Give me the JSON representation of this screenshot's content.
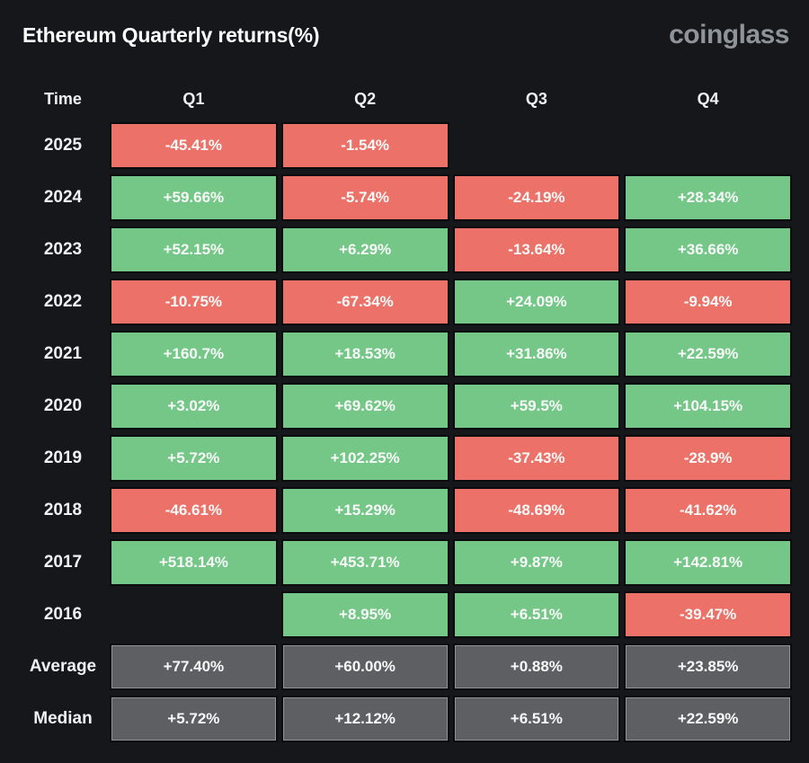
{
  "header": {
    "title": "Ethereum Quarterly returns(%)",
    "logo": "coinglass"
  },
  "colors": {
    "background": "#15171b",
    "border": "#0b0c0e",
    "positive": "#74c787",
    "negative": "#ec7168",
    "neutral": "#5e5f62"
  },
  "table": {
    "columns": [
      "Time",
      "Q1",
      "Q2",
      "Q3",
      "Q4"
    ],
    "rows": [
      {
        "label": "2025",
        "cells": [
          {
            "value": "-45.41%",
            "type": "negative"
          },
          {
            "value": "-1.54%",
            "type": "negative"
          },
          null,
          null
        ]
      },
      {
        "label": "2024",
        "cells": [
          {
            "value": "+59.66%",
            "type": "positive"
          },
          {
            "value": "-5.74%",
            "type": "negative"
          },
          {
            "value": "-24.19%",
            "type": "negative"
          },
          {
            "value": "+28.34%",
            "type": "positive"
          }
        ]
      },
      {
        "label": "2023",
        "cells": [
          {
            "value": "+52.15%",
            "type": "positive"
          },
          {
            "value": "+6.29%",
            "type": "positive"
          },
          {
            "value": "-13.64%",
            "type": "negative"
          },
          {
            "value": "+36.66%",
            "type": "positive"
          }
        ]
      },
      {
        "label": "2022",
        "cells": [
          {
            "value": "-10.75%",
            "type": "negative"
          },
          {
            "value": "-67.34%",
            "type": "negative"
          },
          {
            "value": "+24.09%",
            "type": "positive"
          },
          {
            "value": "-9.94%",
            "type": "negative"
          }
        ]
      },
      {
        "label": "2021",
        "cells": [
          {
            "value": "+160.7%",
            "type": "positive"
          },
          {
            "value": "+18.53%",
            "type": "positive"
          },
          {
            "value": "+31.86%",
            "type": "positive"
          },
          {
            "value": "+22.59%",
            "type": "positive"
          }
        ]
      },
      {
        "label": "2020",
        "cells": [
          {
            "value": "+3.02%",
            "type": "positive"
          },
          {
            "value": "+69.62%",
            "type": "positive"
          },
          {
            "value": "+59.5%",
            "type": "positive"
          },
          {
            "value": "+104.15%",
            "type": "positive"
          }
        ]
      },
      {
        "label": "2019",
        "cells": [
          {
            "value": "+5.72%",
            "type": "positive"
          },
          {
            "value": "+102.25%",
            "type": "positive"
          },
          {
            "value": "-37.43%",
            "type": "negative"
          },
          {
            "value": "-28.9%",
            "type": "negative"
          }
        ]
      },
      {
        "label": "2018",
        "cells": [
          {
            "value": "-46.61%",
            "type": "negative"
          },
          {
            "value": "+15.29%",
            "type": "positive"
          },
          {
            "value": "-48.69%",
            "type": "negative"
          },
          {
            "value": "-41.62%",
            "type": "negative"
          }
        ]
      },
      {
        "label": "2017",
        "cells": [
          {
            "value": "+518.14%",
            "type": "positive"
          },
          {
            "value": "+453.71%",
            "type": "positive"
          },
          {
            "value": "+9.87%",
            "type": "positive"
          },
          {
            "value": "+142.81%",
            "type": "positive"
          }
        ]
      },
      {
        "label": "2016",
        "cells": [
          null,
          {
            "value": "+8.95%",
            "type": "positive"
          },
          {
            "value": "+6.51%",
            "type": "positive"
          },
          {
            "value": "-39.47%",
            "type": "negative"
          }
        ]
      },
      {
        "label": "Average",
        "cells": [
          {
            "value": "+77.40%",
            "type": "neutral"
          },
          {
            "value": "+60.00%",
            "type": "neutral"
          },
          {
            "value": "+0.88%",
            "type": "neutral"
          },
          {
            "value": "+23.85%",
            "type": "neutral"
          }
        ]
      },
      {
        "label": "Median",
        "cells": [
          {
            "value": "+5.72%",
            "type": "neutral"
          },
          {
            "value": "+12.12%",
            "type": "neutral"
          },
          {
            "value": "+6.51%",
            "type": "neutral"
          },
          {
            "value": "+22.59%",
            "type": "neutral"
          }
        ]
      }
    ]
  },
  "chart_data": {
    "type": "heatmap",
    "title": "Ethereum Quarterly returns(%)",
    "columns": [
      "Q1",
      "Q2",
      "Q3",
      "Q4"
    ],
    "rows": [
      "2025",
      "2024",
      "2023",
      "2022",
      "2021",
      "2020",
      "2019",
      "2018",
      "2017",
      "2016",
      "Average",
      "Median"
    ],
    "values_percent": [
      [
        -45.41,
        -1.54,
        null,
        null
      ],
      [
        59.66,
        -5.74,
        -24.19,
        28.34
      ],
      [
        52.15,
        6.29,
        -13.64,
        36.66
      ],
      [
        -10.75,
        -67.34,
        24.09,
        -9.94
      ],
      [
        160.7,
        18.53,
        31.86,
        22.59
      ],
      [
        3.02,
        69.62,
        59.5,
        104.15
      ],
      [
        5.72,
        102.25,
        -37.43,
        -28.9
      ],
      [
        -46.61,
        15.29,
        -48.69,
        -41.62
      ],
      [
        518.14,
        453.71,
        9.87,
        142.81
      ],
      [
        null,
        8.95,
        6.51,
        -39.47
      ],
      [
        77.4,
        60.0,
        0.88,
        23.85
      ],
      [
        5.72,
        12.12,
        6.51,
        22.59
      ]
    ],
    "legend_position": "none",
    "color_coding": "green = positive return, red = negative return, gray = summary rows (Average/Median), empty = no data"
  }
}
